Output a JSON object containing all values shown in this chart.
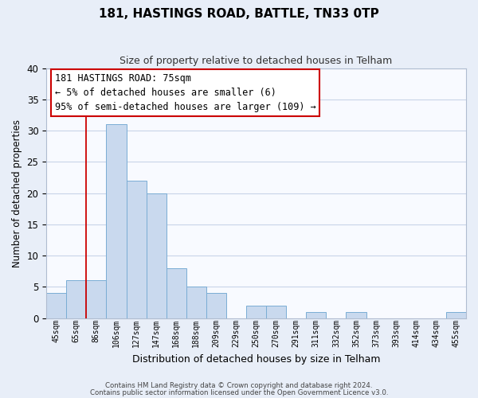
{
  "title": "181, HASTINGS ROAD, BATTLE, TN33 0TP",
  "subtitle": "Size of property relative to detached houses in Telham",
  "xlabel": "Distribution of detached houses by size in Telham",
  "ylabel": "Number of detached properties",
  "bar_labels": [
    "45sqm",
    "65sqm",
    "86sqm",
    "106sqm",
    "127sqm",
    "147sqm",
    "168sqm",
    "188sqm",
    "209sqm",
    "229sqm",
    "250sqm",
    "270sqm",
    "291sqm",
    "311sqm",
    "332sqm",
    "352sqm",
    "373sqm",
    "393sqm",
    "414sqm",
    "434sqm",
    "455sqm"
  ],
  "bar_values": [
    4,
    6,
    6,
    31,
    22,
    20,
    8,
    5,
    4,
    0,
    2,
    2,
    0,
    1,
    0,
    1,
    0,
    0,
    0,
    0,
    1
  ],
  "bar_color": "#c9d9ee",
  "bar_edge_color": "#7aadd4",
  "vline_color": "#cc0000",
  "vline_x": 1.5,
  "annotation_box_text": "181 HASTINGS ROAD: 75sqm\n← 5% of detached houses are smaller (6)\n95% of semi-detached houses are larger (109) →",
  "ylim": [
    0,
    40
  ],
  "yticks": [
    0,
    5,
    10,
    15,
    20,
    25,
    30,
    35,
    40
  ],
  "footer_line1": "Contains HM Land Registry data © Crown copyright and database right 2024.",
  "footer_line2": "Contains public sector information licensed under the Open Government Licence v3.0.",
  "bg_color": "#e8eef8",
  "plot_bg_color": "#f8faff",
  "grid_color": "#c8d4e8",
  "title_fontsize": 11,
  "subtitle_fontsize": 9
}
